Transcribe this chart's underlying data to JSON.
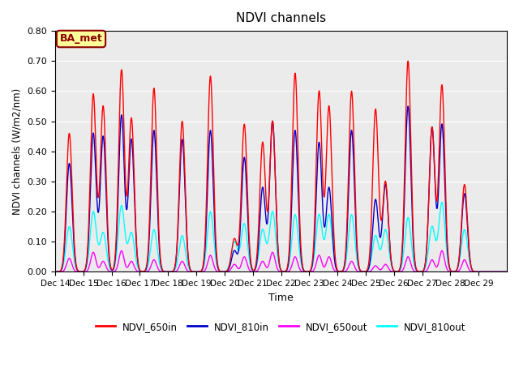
{
  "title": "NDVI channels",
  "xlabel": "Time",
  "ylabel": "NDVI channels (W/m2/nm)",
  "ylim": [
    0.0,
    0.8
  ],
  "yticks": [
    0.0,
    0.1,
    0.2,
    0.3,
    0.4,
    0.5,
    0.6,
    0.7,
    0.8
  ],
  "xtick_labels": [
    "Dec 14",
    "Dec 15",
    "Dec 16",
    "Dec 17",
    "Dec 18",
    "Dec 19",
    "Dec 20",
    "Dec 21",
    "Dec 22",
    "Dec 23",
    "Dec 24",
    "Dec 25",
    "Dec 26",
    "Dec 27",
    "Dec 28",
    "Dec 29"
  ],
  "legend_label": "BA_met",
  "series_colors": {
    "NDVI_650in": "#FF0000",
    "NDVI_810in": "#0000CC",
    "NDVI_650out": "#FF00FF",
    "NDVI_810out": "#00FFFF"
  },
  "bg_color": "#EBEBEB",
  "fig_bg_color": "#FFFFFF",
  "grid_color": "#FFFFFF",
  "annotation_bg": "#FFFF99",
  "annotation_border": "#8B0000",
  "num_days": 16,
  "spike_positions": [
    0.5,
    1.35,
    1.7,
    2.35,
    2.7,
    3.5,
    4.5,
    5.5,
    6.35,
    6.7,
    7.35,
    7.7,
    8.5,
    9.35,
    9.7,
    10.5,
    11.35,
    11.7,
    12.5,
    13.35,
    13.7,
    14.5,
    15.35
  ],
  "peaks_650in": [
    0.46,
    0.59,
    0.55,
    0.67,
    0.51,
    0.61,
    0.5,
    0.65,
    0.11,
    0.49,
    0.43,
    0.5,
    0.66,
    0.6,
    0.55,
    0.6,
    0.54,
    0.3,
    0.7,
    0.48,
    0.62,
    0.29,
    0.0
  ],
  "peaks_810in": [
    0.36,
    0.46,
    0.45,
    0.52,
    0.44,
    0.47,
    0.44,
    0.47,
    0.07,
    0.38,
    0.28,
    0.5,
    0.47,
    0.43,
    0.28,
    0.47,
    0.24,
    0.29,
    0.55,
    0.48,
    0.49,
    0.26,
    0.0
  ],
  "peaks_650out": [
    0.045,
    0.065,
    0.035,
    0.07,
    0.035,
    0.04,
    0.035,
    0.055,
    0.025,
    0.05,
    0.035,
    0.065,
    0.05,
    0.055,
    0.05,
    0.035,
    0.02,
    0.025,
    0.05,
    0.04,
    0.07,
    0.04,
    0.0
  ],
  "peaks_810out": [
    0.15,
    0.2,
    0.13,
    0.22,
    0.13,
    0.14,
    0.12,
    0.2,
    0.1,
    0.16,
    0.14,
    0.2,
    0.19,
    0.19,
    0.19,
    0.19,
    0.12,
    0.14,
    0.18,
    0.15,
    0.23,
    0.14,
    0.0
  ]
}
